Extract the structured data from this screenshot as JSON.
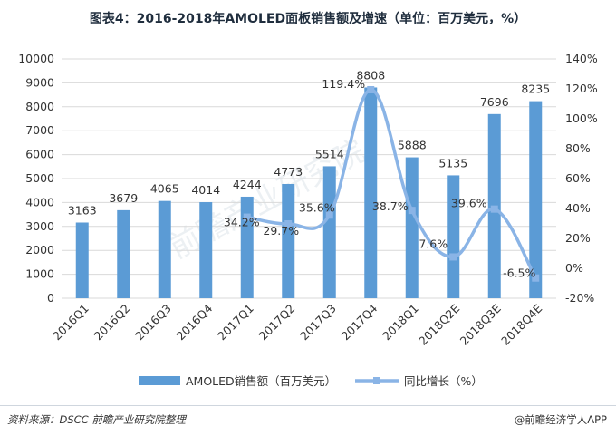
{
  "title": "图表4：2016-2018年AMOLED面板销售额及增速（单位：百万美元，%）",
  "chart_data": {
    "type": "bar+line",
    "categories": [
      "2016Q1",
      "2016Q2",
      "2016Q3",
      "2016Q4",
      "2017Q1",
      "2017Q2",
      "2017Q3",
      "2017Q4",
      "2018Q1",
      "2018Q2E",
      "2018Q3E",
      "2018Q4E"
    ],
    "series": [
      {
        "name": "AMOLED销售额（百万美元）",
        "type": "bar",
        "axis": "left",
        "color": "#5b9bd5",
        "values": [
          3163,
          3679,
          4065,
          4014,
          4244,
          4773,
          5514,
          8808,
          5888,
          5135,
          7696,
          8235
        ],
        "labels": [
          "3163",
          "3679",
          "4065",
          "4014",
          "4244",
          "4773",
          "5514",
          "8808",
          "5888",
          "5135",
          "7696",
          "8235"
        ]
      },
      {
        "name": "同比增长（%）",
        "type": "line",
        "axis": "right",
        "color": "#8ab4e6",
        "values": [
          null,
          null,
          null,
          null,
          34.2,
          29.7,
          35.6,
          119.4,
          38.7,
          7.6,
          39.6,
          -6.5
        ],
        "labels": [
          "",
          "",
          "",
          "",
          "34.2%",
          "29.7%",
          "35.6%",
          "119.4%",
          "38.7%",
          "7.6%",
          "39.6%",
          "-6.5%"
        ]
      }
    ],
    "ylim_left": [
      0,
      10000
    ],
    "yticks_left": [
      "0",
      "1000",
      "2000",
      "3000",
      "4000",
      "5000",
      "6000",
      "7000",
      "8000",
      "9000",
      "10000"
    ],
    "ylim_right": [
      -20,
      140
    ],
    "yticks_right": [
      "-20%",
      "0%",
      "20%",
      "40%",
      "60%",
      "80%",
      "100%",
      "120%",
      "140%"
    ],
    "grid": true,
    "legend_position": "bottom"
  },
  "footer": {
    "source": "资料来源：DSCC  前瞻产业研究院整理",
    "credit": "@前瞻经济学人APP"
  },
  "watermark": "前瞻产业研究院"
}
